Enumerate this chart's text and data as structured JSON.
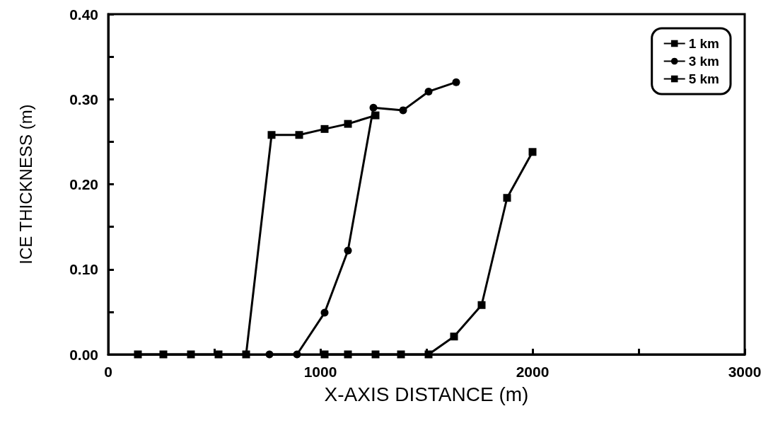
{
  "chart_data": {
    "type": "line",
    "xlabel": "X-AXIS DISTANCE (m)",
    "ylabel": "ICE THICKNESS (m)",
    "xlim": [
      0,
      3000
    ],
    "xticks": [
      0,
      {
        "value": 500,
        "label": null
      },
      1000,
      {
        "value": 1500,
        "label": null
      },
      2000,
      {
        "value": 2500,
        "label": null
      },
      3000
    ],
    "ylim": [
      0,
      0.4
    ],
    "yticks": [
      {
        "value": 0,
        "label": "0.00"
      },
      {
        "value": 0.05,
        "label": null
      },
      {
        "value": 0.1,
        "label": "0.10"
      },
      {
        "value": 0.15,
        "label": null
      },
      {
        "value": 0.2,
        "label": "0.20"
      },
      {
        "value": 0.25,
        "label": null
      },
      {
        "value": 0.3,
        "label": "0.30"
      },
      {
        "value": 0.35,
        "label": null
      },
      {
        "value": 0.4,
        "label": "0.40"
      }
    ],
    "grid": false,
    "legend": "top right",
    "line_style": "solid",
    "series": [
      {
        "name": "1 km",
        "color": "#000000",
        "marker": "square",
        "x": [
          140,
          260,
          390,
          520,
          650,
          770,
          900,
          1020,
          1130,
          1260
        ],
        "values": [
          0,
          0,
          0,
          0,
          0,
          0.258,
          0.258,
          0.265,
          0.271,
          0.281
        ]
      },
      {
        "name": "3 km",
        "color": "#000000",
        "marker": "circle",
        "x": [
          760,
          890,
          1020,
          1130,
          1250,
          1390,
          1510,
          1640
        ],
        "values": [
          0,
          0,
          0.049,
          0.122,
          0.29,
          0.287,
          0.309,
          0.32
        ]
      },
      {
        "name": "5 km",
        "color": "#000000",
        "marker": "square",
        "x": [
          1020,
          1130,
          1260,
          1380,
          1510,
          1630,
          1760,
          1880,
          2000
        ],
        "values": [
          0,
          0,
          0,
          0,
          0,
          0.021,
          0.058,
          0.184,
          0.238
        ]
      }
    ]
  }
}
